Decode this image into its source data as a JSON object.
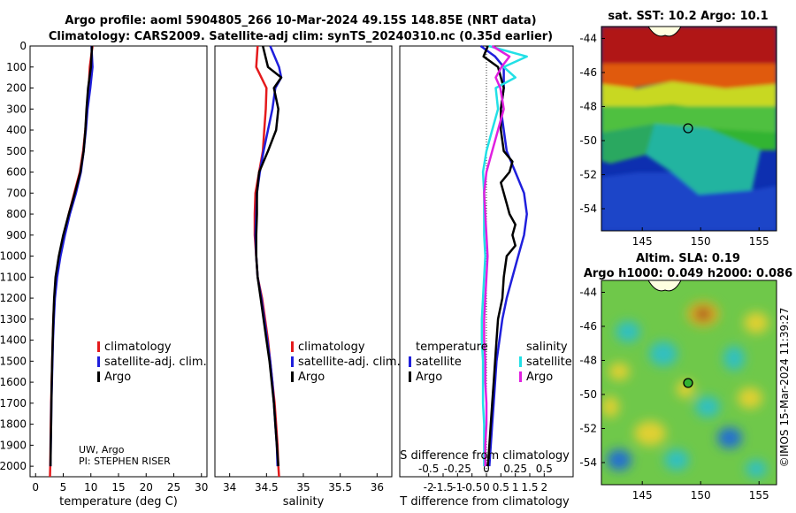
{
  "header": {
    "title_line1": "Argo profile: aoml 5904805_266 10-Mar-2024 49.15S 148.85E (NRT data)",
    "title_line2": "Climatology: CARS2009. Satellite-adj clim: synTS_20240310.nc (0.35d earlier)"
  },
  "credits": {
    "inst": "UW, Argo",
    "pi": "PI: STEPHEN RISER",
    "timestamp": "©IMOS 15-Mar-2024 11:39:27"
  },
  "colors": {
    "climatology": "#e41a1c",
    "satellite": "#1f1fdc",
    "argo": "#000000",
    "sat_salinity": "#22e0e6",
    "argo_salinity": "#e020e0"
  },
  "depth_ticks": [
    "0",
    "100",
    "200",
    "300",
    "400",
    "500",
    "600",
    "700",
    "800",
    "900",
    "1000",
    "1100",
    "1200",
    "1300",
    "1400",
    "1500",
    "1600",
    "1700",
    "1800",
    "1900",
    "2000"
  ],
  "legend": {
    "climatology": "climatology",
    "satellite_clim": "satellite-adj. clim.",
    "argo": "Argo",
    "temperature": "temperature",
    "salinity": "salinity",
    "satellite": "satellite"
  },
  "chart_data": [
    {
      "type": "line",
      "panel": "temperature",
      "xlabel": "temperature (deg C)",
      "ylabel": "depth",
      "xlim": [
        -1,
        31
      ],
      "ylim": [
        2050,
        0
      ],
      "x_ticks": [
        "0",
        "5",
        "10",
        "15",
        "20",
        "25",
        "30"
      ],
      "series": [
        {
          "name": "climatology",
          "depth": [
            0,
            100,
            200,
            300,
            400,
            500,
            600,
            700,
            800,
            900,
            1000,
            1100,
            1200,
            1300,
            1400,
            1500,
            1600,
            1700,
            1800,
            1900,
            2000,
            2050
          ],
          "values": [
            10.3,
            9.8,
            9.6,
            9.3,
            9.0,
            8.6,
            8.0,
            7.0,
            6.0,
            5.1,
            4.3,
            3.7,
            3.4,
            3.2,
            3.1,
            3.0,
            2.9,
            2.8,
            2.75,
            2.7,
            2.65,
            2.6
          ]
        },
        {
          "name": "satellite-adj. clim.",
          "depth": [
            0,
            100,
            200,
            300,
            400,
            500,
            600,
            700,
            800,
            900,
            1000,
            1100,
            1200,
            1300,
            1400,
            1500,
            1600,
            1700,
            1800,
            1900,
            2000
          ],
          "values": [
            10.1,
            10.3,
            9.9,
            9.4,
            9.1,
            8.7,
            8.2,
            7.3,
            6.2,
            5.3,
            4.5,
            3.9,
            3.5,
            3.3,
            3.15,
            3.05,
            2.95,
            2.85,
            2.8,
            2.75,
            2.7
          ]
        },
        {
          "name": "Argo",
          "depth": [
            0,
            100,
            200,
            300,
            400,
            500,
            600,
            700,
            800,
            900,
            1000,
            1100,
            1200,
            1300,
            1400,
            1500,
            1600,
            1700,
            1800,
            1900,
            2000
          ],
          "values": [
            10.2,
            10.0,
            9.5,
            9.2,
            9.0,
            8.7,
            8.1,
            7.1,
            6.0,
            5.0,
            4.2,
            3.6,
            3.35,
            3.2,
            3.1,
            3.0,
            2.92,
            2.85,
            2.8,
            2.75,
            2.7
          ]
        }
      ]
    },
    {
      "type": "line",
      "panel": "salinity",
      "xlabel": "salinity",
      "ylabel": "depth",
      "xlim": [
        33.8,
        36.2
      ],
      "ylim": [
        2050,
        0
      ],
      "x_ticks": [
        "34",
        "34.5",
        "35",
        "35.5",
        "36"
      ],
      "series": [
        {
          "name": "climatology",
          "depth": [
            0,
            100,
            200,
            300,
            400,
            500,
            600,
            700,
            800,
            900,
            1000,
            1100,
            1200,
            1300,
            1400,
            1500,
            1600,
            1700,
            1800,
            1900,
            2000,
            2050
          ],
          "values": [
            34.38,
            34.36,
            34.5,
            34.49,
            34.47,
            34.45,
            34.4,
            34.35,
            34.34,
            34.34,
            34.36,
            34.38,
            34.44,
            34.48,
            34.52,
            34.55,
            34.58,
            34.61,
            34.63,
            34.65,
            34.66,
            34.67
          ]
        },
        {
          "name": "satellite-adj. clim.",
          "depth": [
            0,
            100,
            150,
            200,
            300,
            400,
            500,
            600,
            700,
            800,
            900,
            1000,
            1100,
            1200,
            1300,
            1400,
            1500,
            1600,
            1700,
            1800,
            1900,
            2000
          ],
          "values": [
            34.55,
            34.67,
            34.7,
            34.62,
            34.58,
            34.52,
            34.46,
            34.41,
            34.37,
            34.36,
            34.35,
            34.36,
            34.38,
            34.43,
            34.47,
            34.51,
            34.55,
            34.58,
            34.6,
            34.62,
            34.64,
            34.65
          ]
        },
        {
          "name": "Argo",
          "depth": [
            0,
            100,
            150,
            200,
            300,
            400,
            500,
            600,
            700,
            800,
            900,
            1000,
            1100,
            1200,
            1300,
            1400,
            1500,
            1600,
            1700,
            1800,
            1900,
            2000
          ],
          "values": [
            34.45,
            34.52,
            34.7,
            34.6,
            34.66,
            34.63,
            34.52,
            34.4,
            34.37,
            34.37,
            34.36,
            34.36,
            34.38,
            34.42,
            34.46,
            34.5,
            34.54,
            34.57,
            34.6,
            34.62,
            34.64,
            34.66
          ]
        }
      ]
    },
    {
      "type": "line",
      "panel": "difference",
      "xlabel": "T difference from climatology",
      "xlabel2": "S difference from climatology",
      "ylabel": "depth",
      "xlim": [
        -3,
        3
      ],
      "ylim": [
        2050,
        0
      ],
      "x_ticks": [
        "-2",
        "-1.5",
        "-1",
        "-0.5",
        "0",
        "0.5",
        "1",
        "1.5",
        "2"
      ],
      "s_ticks": [
        "-0.5",
        "-0.25",
        "0",
        "0.25",
        "0.5"
      ],
      "series": [
        {
          "name": "temperature satellite",
          "depth": [
            0,
            50,
            100,
            200,
            300,
            400,
            500,
            600,
            700,
            800,
            900,
            1000,
            1100,
            1200,
            1300,
            1400,
            1500,
            1600,
            1700,
            1800,
            1900,
            2000
          ],
          "values": [
            -0.2,
            0.3,
            0.6,
            0.6,
            0.5,
            0.6,
            0.7,
            1.0,
            1.3,
            1.4,
            1.3,
            1.1,
            0.9,
            0.7,
            0.55,
            0.45,
            0.35,
            0.3,
            0.25,
            0.2,
            0.15,
            0.1
          ]
        },
        {
          "name": "temperature Argo",
          "depth": [
            0,
            50,
            100,
            200,
            300,
            400,
            500,
            550,
            600,
            650,
            700,
            750,
            800,
            850,
            900,
            950,
            1000,
            1100,
            1200,
            1300,
            1400,
            1500,
            1600,
            1700,
            1800,
            1900,
            2000
          ],
          "values": [
            0.05,
            -0.1,
            0.4,
            0.6,
            0.5,
            0.5,
            0.6,
            0.9,
            0.8,
            0.5,
            0.6,
            0.7,
            0.8,
            1.0,
            0.9,
            1.0,
            0.7,
            0.6,
            0.55,
            0.4,
            0.35,
            0.3,
            0.25,
            0.2,
            0.15,
            0.1,
            0.05
          ]
        },
        {
          "name": "salinity satellite",
          "depth": [
            0,
            50,
            100,
            150,
            200,
            300,
            400,
            500,
            600,
            700,
            800,
            900,
            1000,
            1100,
            1200,
            1300,
            1400,
            1500,
            1600,
            1700,
            1800,
            1900,
            2000
          ],
          "values": [
            0.02,
            0.35,
            0.15,
            0.25,
            0.08,
            0.1,
            0.05,
            0.0,
            -0.03,
            -0.02,
            -0.02,
            -0.02,
            -0.01,
            -0.02,
            -0.03,
            -0.04,
            -0.04,
            -0.03,
            -0.03,
            -0.03,
            -0.02,
            -0.02,
            -0.02
          ]
        },
        {
          "name": "salinity Argo",
          "depth": [
            0,
            50,
            100,
            150,
            200,
            300,
            400,
            500,
            600,
            700,
            800,
            900,
            1000,
            1100,
            1200,
            1300,
            1400,
            1500,
            1600,
            1700,
            1800,
            1900,
            2000
          ],
          "values": [
            0.05,
            0.2,
            0.13,
            0.08,
            0.12,
            0.15,
            0.1,
            0.05,
            0.0,
            -0.02,
            -0.01,
            0.0,
            0.01,
            0.0,
            -0.01,
            -0.02,
            -0.02,
            -0.01,
            -0.01,
            0.0,
            0.0,
            -0.01,
            -0.01
          ]
        }
      ]
    },
    {
      "type": "heatmap",
      "panel": "sat-sst-map",
      "title": "sat. SST: 10.2 Argo: 10.1",
      "xlim": [
        141.5,
        156.5
      ],
      "ylim": [
        -55.3,
        -43.3
      ],
      "x_ticks": [
        "145",
        "150",
        "155"
      ],
      "y_ticks": [
        "-44",
        "-46",
        "-48",
        "-50",
        "-52",
        "-54"
      ],
      "argo_position": {
        "lon": 148.85,
        "lat": -49.15
      }
    },
    {
      "type": "heatmap",
      "panel": "altimetry-map",
      "title_line1": "Altim. SLA: 0.19",
      "title_line2": "Argo h1000: 0.049 h2000: 0.086",
      "xlim": [
        141.5,
        156.5
      ],
      "ylim": [
        -55.3,
        -43.3
      ],
      "x_ticks": [
        "145",
        "150",
        "155"
      ],
      "y_ticks": [
        "-44",
        "-46",
        "-48",
        "-50",
        "-52",
        "-54"
      ],
      "argo_position": {
        "lon": 148.85,
        "lat": -49.15
      }
    }
  ]
}
